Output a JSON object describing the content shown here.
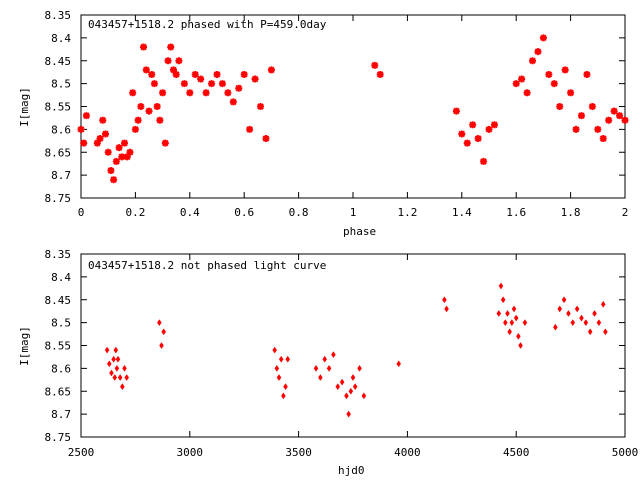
{
  "chart_data": [
    {
      "type": "scatter",
      "title": "043457+1518.2 phased with P=459.0day",
      "xlabel": "phase",
      "ylabel": "I[mag]",
      "xlim": [
        0,
        2
      ],
      "ylim": [
        8.75,
        8.35
      ],
      "y_inverted": true,
      "grid": false,
      "marker_color": "#ff0000",
      "x_ticks": [
        "0",
        "0.2",
        "0.4",
        "0.6",
        "0.8",
        "1",
        "1.2",
        "1.4",
        "1.6",
        "1.8",
        "2"
      ],
      "y_ticks": [
        "8.35",
        "8.4",
        "8.45",
        "8.5",
        "8.55",
        "8.6",
        "8.65",
        "8.7",
        "8.75"
      ],
      "series": [
        {
          "x": [
            0.0,
            0.01,
            0.02,
            0.06,
            0.07,
            0.08,
            0.09,
            0.1,
            0.11,
            0.12,
            0.13,
            0.14,
            0.15,
            0.16,
            0.17,
            0.18,
            0.19,
            0.2,
            0.21,
            0.22,
            0.23,
            0.24,
            0.25,
            0.26,
            0.27,
            0.28,
            0.29,
            0.3,
            0.31,
            0.32,
            0.33,
            0.34,
            0.35,
            0.36,
            0.38,
            0.4,
            0.42,
            0.44,
            0.46,
            0.48,
            0.5,
            0.52,
            0.54,
            0.56,
            0.58,
            0.6,
            0.62,
            0.64,
            0.66,
            0.68,
            0.7,
            1.08,
            1.1,
            1.38,
            1.4,
            1.42,
            1.44,
            1.46,
            1.48,
            1.5,
            1.52,
            1.6,
            1.62,
            1.64,
            1.66,
            1.68,
            1.7,
            1.72,
            1.74,
            1.76,
            1.78,
            1.8,
            1.82,
            1.84,
            1.86,
            1.88,
            1.9,
            1.92,
            1.94,
            1.96,
            1.98,
            2.0
          ],
          "y": [
            8.6,
            8.63,
            8.57,
            8.63,
            8.62,
            8.58,
            8.61,
            8.65,
            8.69,
            8.71,
            8.67,
            8.64,
            8.66,
            8.63,
            8.66,
            8.65,
            8.52,
            8.6,
            8.58,
            8.55,
            8.42,
            8.47,
            8.56,
            8.48,
            8.5,
            8.55,
            8.58,
            8.52,
            8.63,
            8.45,
            8.42,
            8.47,
            8.48,
            8.45,
            8.5,
            8.52,
            8.48,
            8.49,
            8.52,
            8.5,
            8.48,
            8.5,
            8.52,
            8.54,
            8.51,
            8.48,
            8.6,
            8.49,
            8.55,
            8.62,
            8.47,
            8.46,
            8.48,
            8.56,
            8.61,
            8.63,
            8.59,
            8.62,
            8.67,
            8.6,
            8.59,
            8.5,
            8.49,
            8.52,
            8.45,
            8.43,
            8.4,
            8.48,
            8.5,
            8.55,
            8.47,
            8.52,
            8.6,
            8.57,
            8.48,
            8.55,
            8.6,
            8.62,
            8.58,
            8.56,
            8.57,
            8.58
          ]
        }
      ]
    },
    {
      "type": "scatter",
      "title": "043457+1518.2 not phased light curve",
      "xlabel": "hjd0",
      "ylabel": "I[mag]",
      "xlim": [
        2500,
        5000
      ],
      "ylim": [
        8.75,
        8.35
      ],
      "y_inverted": true,
      "grid": false,
      "marker_color": "#ff0000",
      "x_ticks": [
        "2500",
        "3000",
        "3500",
        "4000",
        "4500",
        "5000"
      ],
      "y_ticks": [
        "8.35",
        "8.4",
        "8.45",
        "8.5",
        "8.55",
        "8.6",
        "8.65",
        "8.7",
        "8.75"
      ],
      "series": [
        {
          "x": [
            2620,
            2630,
            2640,
            2650,
            2655,
            2660,
            2665,
            2670,
            2680,
            2690,
            2700,
            2710,
            2860,
            2870,
            2880,
            3390,
            3400,
            3410,
            3420,
            3430,
            3440,
            3450,
            3580,
            3600,
            3620,
            3640,
            3660,
            3680,
            3700,
            3720,
            3730,
            3740,
            3750,
            3760,
            3780,
            3800,
            3960,
            4170,
            4180,
            4420,
            4430,
            4440,
            4450,
            4460,
            4470,
            4480,
            4490,
            4500,
            4510,
            4520,
            4540,
            4680,
            4700,
            4720,
            4740,
            4760,
            4780,
            4800,
            4820,
            4840,
            4860,
            4880,
            4900,
            4910
          ],
          "y": [
            8.56,
            8.59,
            8.61,
            8.58,
            8.62,
            8.56,
            8.6,
            8.58,
            8.62,
            8.64,
            8.6,
            8.62,
            8.5,
            8.55,
            8.52,
            8.56,
            8.6,
            8.62,
            8.58,
            8.66,
            8.64,
            8.58,
            8.6,
            8.62,
            8.58,
            8.6,
            8.57,
            8.64,
            8.63,
            8.66,
            8.7,
            8.65,
            8.62,
            8.64,
            8.6,
            8.66,
            8.59,
            8.45,
            8.47,
            8.48,
            8.42,
            8.45,
            8.5,
            8.48,
            8.52,
            8.5,
            8.47,
            8.49,
            8.53,
            8.55,
            8.5,
            8.51,
            8.47,
            8.45,
            8.48,
            8.5,
            8.47,
            8.49,
            8.5,
            8.52,
            8.48,
            8.5,
            8.46,
            8.52
          ]
        }
      ]
    }
  ]
}
